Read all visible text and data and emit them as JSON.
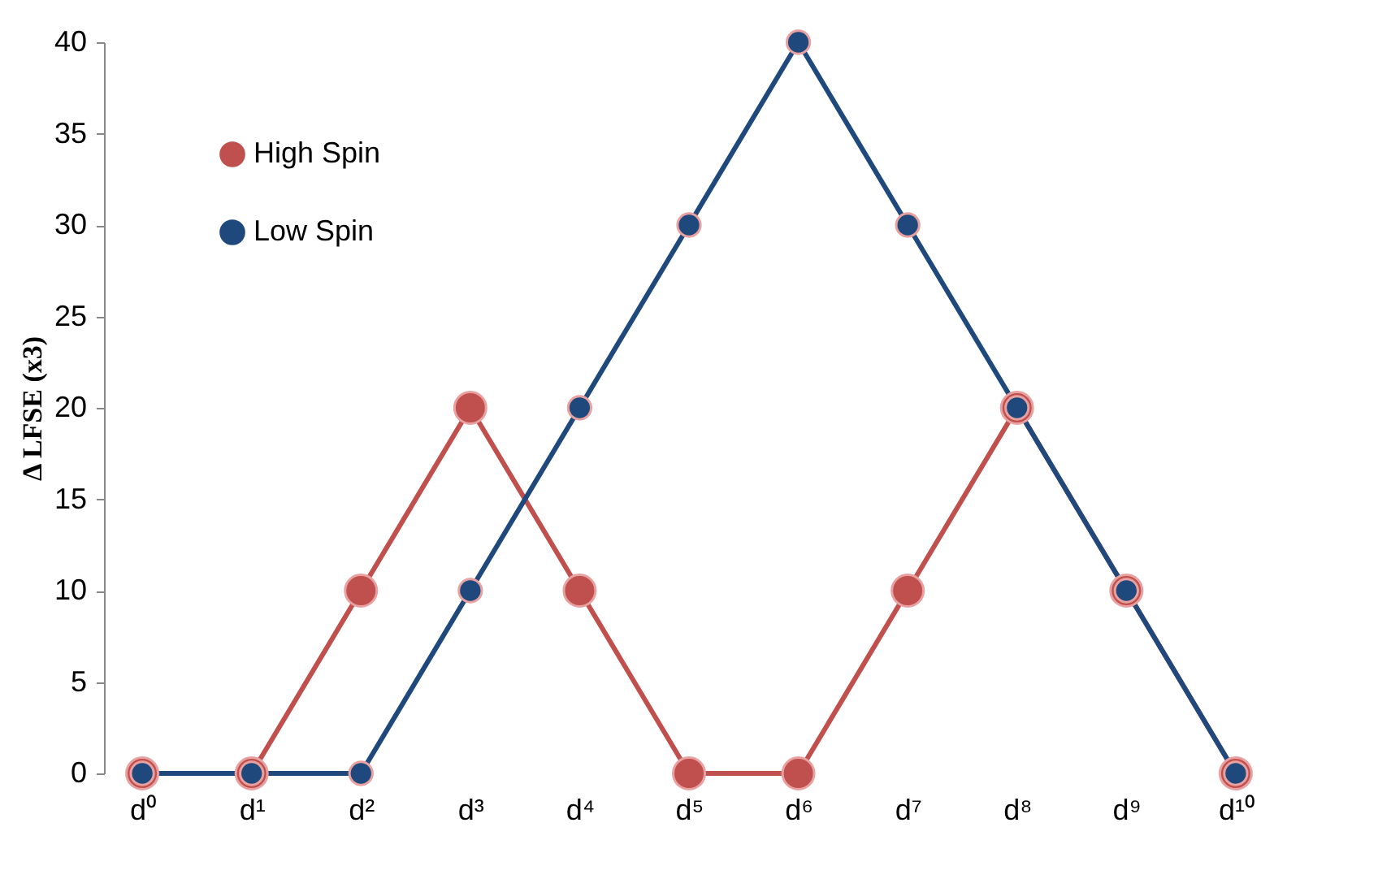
{
  "chart_data": {
    "type": "line",
    "ylabel": "Δ LFSE (x3)",
    "categories": [
      "d⁰",
      "d¹",
      "d²",
      "d³",
      "d⁴",
      "d⁵",
      "d⁶",
      "d⁷",
      "d⁸",
      "d⁹",
      "d¹⁰"
    ],
    "series": [
      {
        "name": "High Spin",
        "color": "#c0504d",
        "values": [
          0,
          0,
          10,
          20,
          10,
          0,
          0,
          10,
          20,
          10,
          0
        ]
      },
      {
        "name": "Low Spin",
        "color": "#1f497d",
        "values": [
          0,
          0,
          0,
          10,
          20,
          30,
          40,
          30,
          20,
          10,
          0
        ]
      }
    ],
    "ylim": [
      0,
      40
    ],
    "yticks": [
      0,
      5,
      10,
      15,
      20,
      25,
      30,
      35,
      40
    ],
    "grid": false,
    "legend": "top left",
    "marker": "circle",
    "line_style": "solid"
  }
}
